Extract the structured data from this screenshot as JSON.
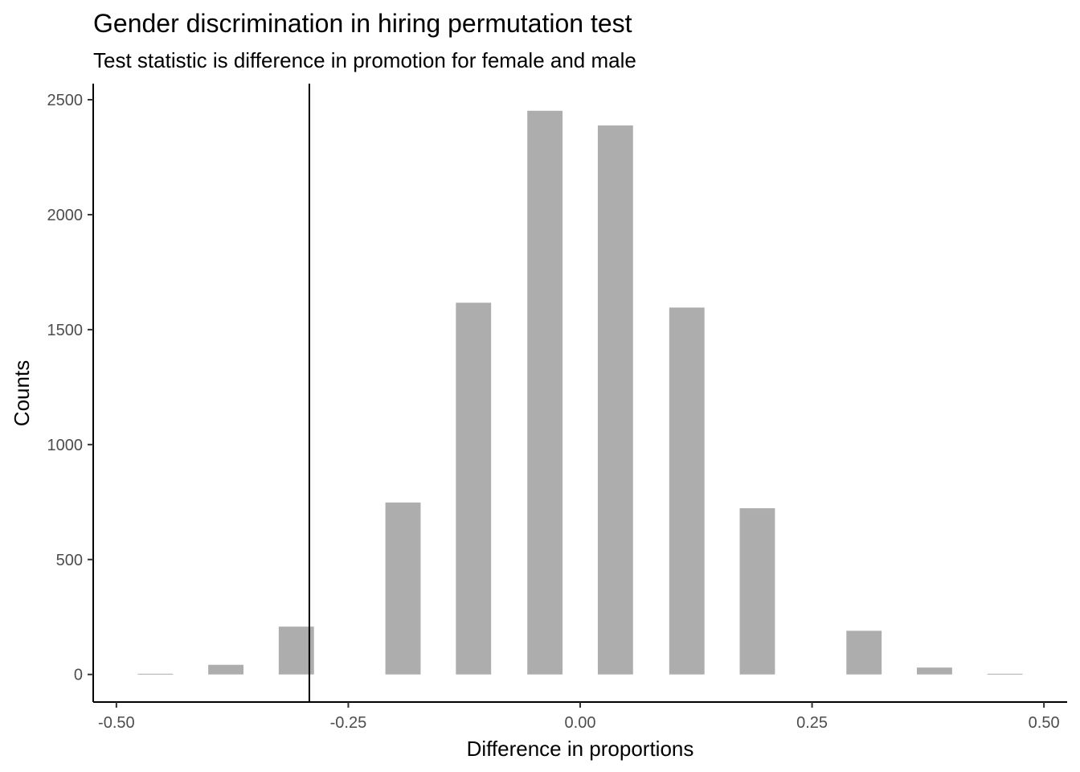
{
  "chart_data": {
    "type": "bar",
    "title": "Gender discrimination in hiring permutation test",
    "subtitle": "Test statistic is difference in promotion for female and male",
    "xlabel": "Difference in proportions",
    "ylabel": "Counts",
    "xlim": [
      -0.525,
      0.525
    ],
    "ylim": [
      -120,
      2570
    ],
    "x_ticks": [
      {
        "value": -0.5,
        "label": "-0.50"
      },
      {
        "value": -0.25,
        "label": "-0.25"
      },
      {
        "value": 0.0,
        "label": "0.00"
      },
      {
        "value": 0.25,
        "label": "0.25"
      },
      {
        "value": 0.5,
        "label": "0.50"
      }
    ],
    "y_ticks": [
      {
        "value": 0,
        "label": "0"
      },
      {
        "value": 500,
        "label": "500"
      },
      {
        "value": 1000,
        "label": "1000"
      },
      {
        "value": 1500,
        "label": "1500"
      },
      {
        "value": 2000,
        "label": "2000"
      },
      {
        "value": 2500,
        "label": "2500"
      }
    ],
    "bar_width": 0.038,
    "bars": [
      {
        "x": -0.458,
        "count": 3
      },
      {
        "x": -0.382,
        "count": 42
      },
      {
        "x": -0.306,
        "count": 208
      },
      {
        "x": -0.191,
        "count": 748
      },
      {
        "x": -0.115,
        "count": 1617
      },
      {
        "x": -0.038,
        "count": 2452
      },
      {
        "x": 0.038,
        "count": 2388
      },
      {
        "x": 0.115,
        "count": 1596
      },
      {
        "x": 0.191,
        "count": 723
      },
      {
        "x": 0.306,
        "count": 190
      },
      {
        "x": 0.382,
        "count": 30
      },
      {
        "x": 0.458,
        "count": 3
      }
    ],
    "observed_statistic": -0.292,
    "bar_color": "#adadad",
    "grid": false
  }
}
